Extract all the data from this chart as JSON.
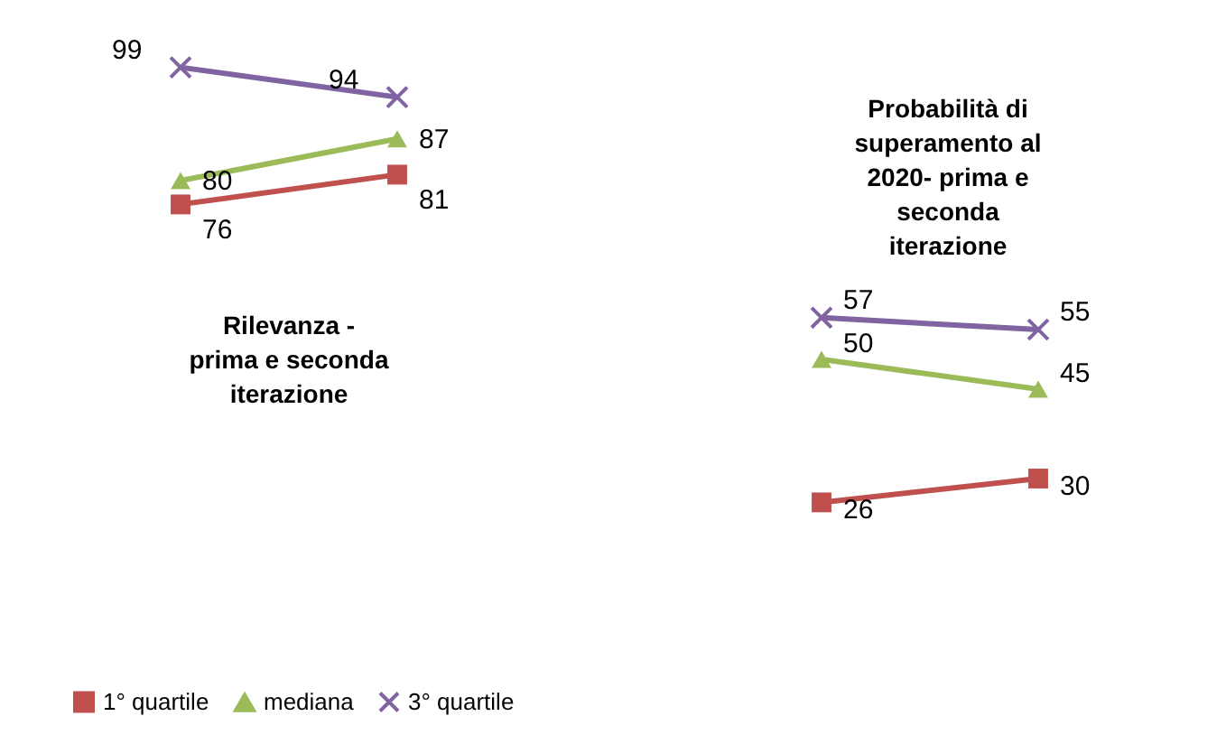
{
  "chart_data": [
    {
      "type": "line",
      "categories": [
        null,
        null
      ],
      "series": [
        {
          "name": "1° quartile",
          "color": "#c0504d",
          "marker": "square",
          "values": [
            76,
            81
          ]
        },
        {
          "name": "mediana",
          "color": "#9bbb59",
          "marker": "triangle",
          "values": [
            80,
            87
          ]
        },
        {
          "name": "3° quartile",
          "color": "#8064a2",
          "marker": "cross",
          "values": [
            99,
            94
          ]
        }
      ],
      "tick_labels": false,
      "annotations": [
        "Rilevanza -\nprima e seconda\niterazione"
      ],
      "data_labels": true,
      "legend": "bottom"
    },
    {
      "type": "line",
      "categories": [
        null,
        null
      ],
      "series": [
        {
          "name": "1° quartile",
          "color": "#c0504d",
          "marker": "square",
          "values": [
            26,
            30
          ]
        },
        {
          "name": "mediana",
          "color": "#9bbb59",
          "marker": "triangle",
          "values": [
            50,
            45
          ]
        },
        {
          "name": "3° quartile",
          "color": "#8064a2",
          "marker": "cross",
          "values": [
            57,
            55
          ]
        }
      ],
      "tick_labels": false,
      "annotations": [
        "Probabilità di\nsuperamento al\n2020- prima e\nseconda\niterazione"
      ],
      "data_labels": true,
      "legend": "bottom"
    }
  ]
}
